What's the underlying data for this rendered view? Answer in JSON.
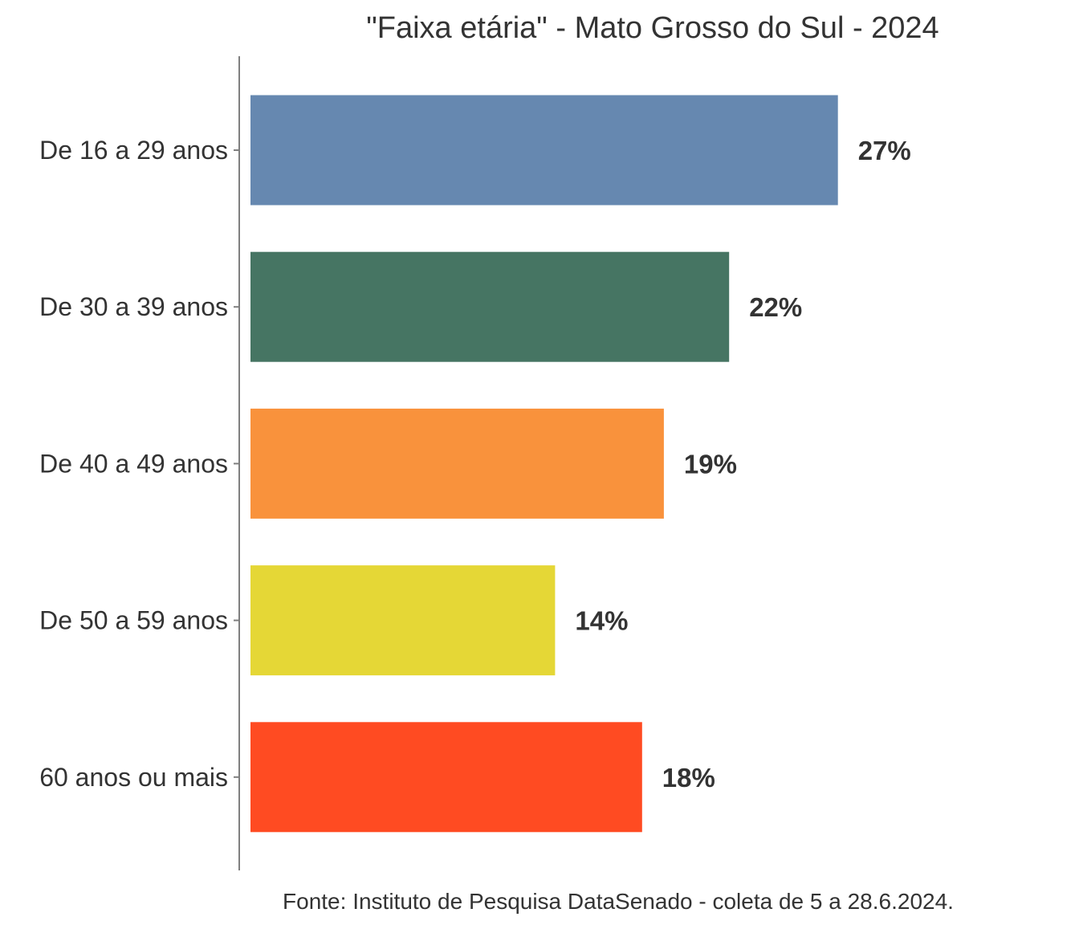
{
  "chart_data": {
    "type": "bar",
    "orientation": "horizontal",
    "title": "\"Faixa etária\" - Mato Grosso do Sul - 2024",
    "caption": "Fonte: Instituto de Pesquisa DataSenado - coleta de 5 a 28.6.2024.",
    "categories": [
      "De 16 a 29 anos",
      "De 30 a 39 anos",
      "De 40 a 49 anos",
      "De 50 a 59 anos",
      "60 anos ou mais"
    ],
    "values": [
      27,
      22,
      19,
      14,
      18
    ],
    "value_labels": [
      "27%",
      "22%",
      "19%",
      "14%",
      "18%"
    ],
    "colors": [
      "#6688B0",
      "#467563",
      "#F9923C",
      "#E5D736",
      "#FF4B22"
    ],
    "xlim": [
      0,
      27
    ],
    "grid": false,
    "legend": "none"
  }
}
